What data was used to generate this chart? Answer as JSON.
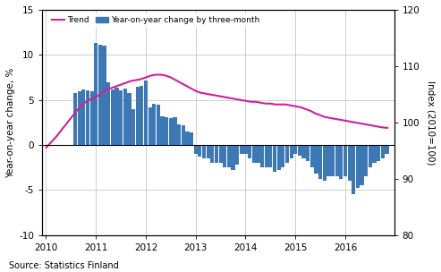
{
  "ylabel_left": "Year-on-year change, %",
  "ylabel_right": "Index (2010=100)",
  "source": "Source: Statistics Finland",
  "legend_trend": "Trend",
  "legend_bar": "Year-on-year change by three-month",
  "ylim_left": [
    -10,
    15
  ],
  "ylim_right": [
    80,
    120
  ],
  "yticks_left": [
    -10,
    -5,
    0,
    5,
    10,
    15
  ],
  "yticks_right": [
    80,
    90,
    100,
    110,
    120
  ],
  "bar_color": "#3c78b5",
  "trend_color": "#cc2299",
  "bar_x": [
    2010.583,
    2010.667,
    2010.75,
    2010.833,
    2010.917,
    2011.0,
    2011.083,
    2011.167,
    2011.25,
    2011.333,
    2011.417,
    2011.5,
    2011.583,
    2011.667,
    2011.75,
    2011.833,
    2011.917,
    2012.0,
    2012.083,
    2012.167,
    2012.25,
    2012.333,
    2012.417,
    2012.5,
    2012.583,
    2012.667,
    2012.75,
    2012.833,
    2012.917,
    2013.0,
    2013.083,
    2013.167,
    2013.25,
    2013.333,
    2013.417,
    2013.5,
    2013.583,
    2013.667,
    2013.75,
    2013.833,
    2013.917,
    2014.0,
    2014.083,
    2014.167,
    2014.25,
    2014.333,
    2014.417,
    2014.5,
    2014.583,
    2014.667,
    2014.75,
    2014.833,
    2014.917,
    2015.0,
    2015.083,
    2015.167,
    2015.25,
    2015.333,
    2015.417,
    2015.5,
    2015.583,
    2015.667,
    2015.75,
    2015.833,
    2015.917,
    2016.0,
    2016.083,
    2016.167,
    2016.25,
    2016.333,
    2016.417,
    2016.5,
    2016.583,
    2016.667,
    2016.75,
    2016.833
  ],
  "bar_values": [
    5.8,
    6.0,
    6.2,
    6.1,
    6.0,
    11.3,
    11.1,
    11.0,
    7.0,
    6.2,
    6.4,
    6.1,
    6.3,
    5.8,
    4.0,
    6.5,
    6.6,
    7.2,
    4.2,
    4.6,
    4.5,
    3.2,
    3.1,
    3.0,
    3.1,
    2.3,
    2.2,
    1.5,
    1.4,
    -1.0,
    -1.3,
    -1.5,
    -1.5,
    -2.0,
    -2.0,
    -2.0,
    -2.5,
    -2.5,
    -2.8,
    -2.2,
    -1.0,
    -1.0,
    -1.5,
    -2.0,
    -2.0,
    -2.5,
    -2.5,
    -2.5,
    -3.0,
    -2.8,
    -2.5,
    -2.0,
    -1.5,
    -1.0,
    -1.2,
    -1.5,
    -1.8,
    -2.5,
    -3.2,
    -3.8,
    -4.0,
    -3.5,
    -3.5,
    -3.5,
    -3.8,
    -3.5,
    -4.0,
    -5.5,
    -4.8,
    -4.5,
    -3.5,
    -2.5,
    -2.0,
    -1.8,
    -1.5,
    -1.0
  ],
  "trend_x": [
    2010.0,
    2010.1,
    2010.2,
    2010.3,
    2010.4,
    2010.5,
    2010.6,
    2010.7,
    2010.8,
    2010.9,
    2011.0,
    2011.1,
    2011.2,
    2011.3,
    2011.4,
    2011.5,
    2011.6,
    2011.7,
    2011.8,
    2011.9,
    2012.0,
    2012.1,
    2012.2,
    2012.3,
    2012.4,
    2012.5,
    2012.6,
    2012.7,
    2012.8,
    2012.9,
    2013.0,
    2013.1,
    2013.2,
    2013.3,
    2013.4,
    2013.5,
    2013.6,
    2013.7,
    2013.8,
    2013.9,
    2014.0,
    2014.1,
    2014.2,
    2014.3,
    2014.4,
    2014.5,
    2014.6,
    2014.7,
    2014.8,
    2014.9,
    2015.0,
    2015.1,
    2015.2,
    2015.3,
    2015.4,
    2015.5,
    2015.6,
    2015.7,
    2015.8,
    2015.9,
    2016.0,
    2016.1,
    2016.2,
    2016.3,
    2016.4,
    2016.5,
    2016.6,
    2016.7,
    2016.75,
    2016.85
  ],
  "trend_y": [
    -0.3,
    0.3,
    0.9,
    1.6,
    2.3,
    3.0,
    3.7,
    4.4,
    4.8,
    5.1,
    5.3,
    5.7,
    6.1,
    6.3,
    6.5,
    6.7,
    6.9,
    7.1,
    7.2,
    7.3,
    7.5,
    7.7,
    7.8,
    7.8,
    7.7,
    7.5,
    7.2,
    6.9,
    6.6,
    6.3,
    6.0,
    5.8,
    5.7,
    5.6,
    5.5,
    5.4,
    5.3,
    5.2,
    5.1,
    5.0,
    4.9,
    4.8,
    4.8,
    4.7,
    4.6,
    4.6,
    4.5,
    4.5,
    4.5,
    4.4,
    4.3,
    4.2,
    4.0,
    3.8,
    3.5,
    3.3,
    3.1,
    3.0,
    2.9,
    2.8,
    2.7,
    2.6,
    2.5,
    2.4,
    2.3,
    2.2,
    2.1,
    2.0,
    1.95,
    1.9
  ],
  "xlim": [
    2009.92,
    2016.98
  ],
  "xticks": [
    2010,
    2011,
    2012,
    2013,
    2014,
    2015,
    2016
  ],
  "bar_width": 0.075,
  "bg_color": "#ffffff",
  "grid_color": "#c8c8c8"
}
